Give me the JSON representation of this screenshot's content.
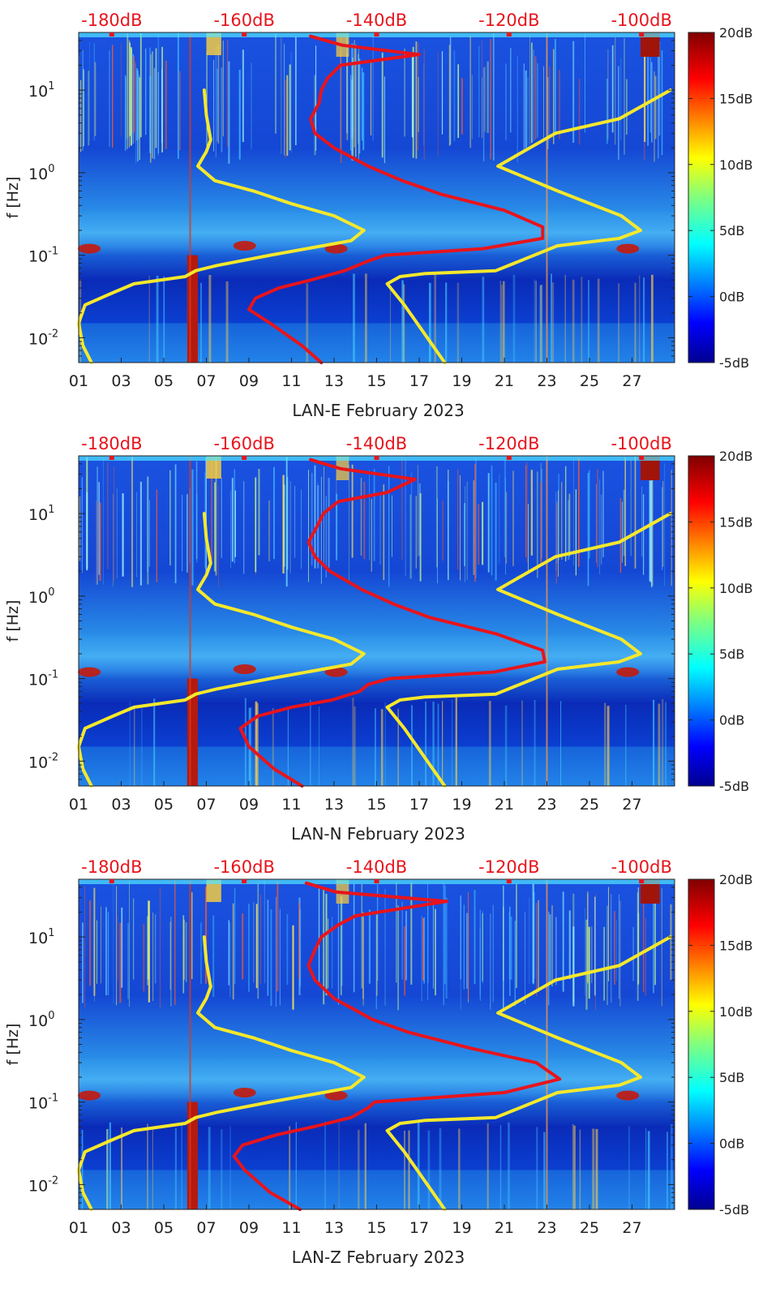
{
  "chart_data": [
    {
      "type": "heatmap",
      "title": "",
      "xlabel": "LAN-E February 2023",
      "ylabel": "f [Hz]",
      "x_ticks": [
        "01",
        "03",
        "05",
        "07",
        "09",
        "11",
        "13",
        "15",
        "17",
        "19",
        "21",
        "23",
        "25",
        "27"
      ],
      "x_range_days": [
        1,
        29
      ],
      "y_ticks": [
        {
          "exp": "1"
        },
        {
          "exp": "0"
        },
        {
          "exp": "-1"
        },
        {
          "exp": "-2"
        }
      ],
      "y_range_hz": [
        0.005,
        50
      ],
      "top_axis_ticks": [
        "-180dB",
        "-160dB",
        "-140dB",
        "-120dB",
        "-100dB"
      ],
      "top_axis_range_db": [
        -185,
        -95
      ],
      "colorbar": {
        "ticks": [
          "20dB",
          "15dB",
          "10dB",
          "5dB",
          "0dB",
          "-5dB"
        ],
        "range_db": [
          -5,
          20
        ]
      },
      "series": [
        {
          "name": "red",
          "color": "#e8141c",
          "points": [
            [
              12.4,
              0.005
            ],
            [
              11.5,
              0.008
            ],
            [
              10.0,
              0.015
            ],
            [
              9.0,
              0.022
            ],
            [
              9.3,
              0.03
            ],
            [
              10.4,
              0.04
            ],
            [
              11.9,
              0.05
            ],
            [
              13.5,
              0.065
            ],
            [
              14.6,
              0.085
            ],
            [
              15.4,
              0.1
            ],
            [
              20.0,
              0.12
            ],
            [
              22.8,
              0.16
            ],
            [
              22.8,
              0.22
            ],
            [
              21.0,
              0.35
            ],
            [
              18.0,
              0.55
            ],
            [
              16.2,
              0.8
            ],
            [
              14.6,
              1.2
            ],
            [
              13.0,
              2.0
            ],
            [
              12.1,
              3.0
            ],
            [
              11.9,
              4.5
            ],
            [
              12.3,
              7.0
            ],
            [
              12.4,
              10.0
            ],
            [
              12.7,
              14.0
            ],
            [
              13.3,
              20.0
            ],
            [
              17.0,
              27.0
            ],
            [
              13.4,
              35.0
            ],
            [
              11.9,
              45.0
            ]
          ]
        },
        {
          "name": "yellow-left",
          "color": "#f5e82c",
          "points": [
            [
              1.6,
              0.005
            ],
            [
              1.2,
              0.008
            ],
            [
              1.0,
              0.015
            ],
            [
              1.3,
              0.025
            ],
            [
              2.6,
              0.035
            ],
            [
              3.6,
              0.045
            ],
            [
              6.0,
              0.055
            ],
            [
              6.5,
              0.065
            ],
            [
              7.5,
              0.075
            ],
            [
              10.0,
              0.1
            ],
            [
              13.8,
              0.15
            ],
            [
              14.4,
              0.2
            ],
            [
              13.0,
              0.3
            ],
            [
              11.0,
              0.42
            ],
            [
              9.2,
              0.6
            ],
            [
              7.4,
              0.8
            ],
            [
              6.6,
              1.2
            ],
            [
              7.0,
              1.8
            ],
            [
              7.2,
              2.5
            ],
            [
              7.0,
              5.0
            ],
            [
              6.9,
              10.0
            ]
          ]
        },
        {
          "name": "yellow-right",
          "color": "#f5e82c",
          "points": [
            [
              18.2,
              0.005
            ],
            [
              16.3,
              0.025
            ],
            [
              15.5,
              0.045
            ],
            [
              16.1,
              0.055
            ],
            [
              17.3,
              0.06
            ],
            [
              20.6,
              0.065
            ],
            [
              23.5,
              0.13
            ],
            [
              26.4,
              0.16
            ],
            [
              27.4,
              0.2
            ],
            [
              26.5,
              0.3
            ],
            [
              23.5,
              0.6
            ],
            [
              20.7,
              1.2
            ],
            [
              23.4,
              3.0
            ],
            [
              26.4,
              4.5
            ],
            [
              28.8,
              10.0
            ]
          ]
        }
      ]
    },
    {
      "type": "heatmap",
      "title": "",
      "xlabel": "LAN-N February 2023",
      "ylabel": "f [Hz]",
      "x_ticks": [
        "01",
        "03",
        "05",
        "07",
        "09",
        "11",
        "13",
        "15",
        "17",
        "19",
        "21",
        "23",
        "25",
        "27"
      ],
      "x_range_days": [
        1,
        29
      ],
      "y_ticks": [
        {
          "exp": "1"
        },
        {
          "exp": "0"
        },
        {
          "exp": "-1"
        },
        {
          "exp": "-2"
        }
      ],
      "y_range_hz": [
        0.005,
        50
      ],
      "top_axis_ticks": [
        "-180dB",
        "-160dB",
        "-140dB",
        "-120dB",
        "-100dB"
      ],
      "top_axis_range_db": [
        -185,
        -95
      ],
      "colorbar": {
        "ticks": [
          "20dB",
          "15dB",
          "10dB",
          "5dB",
          "0dB",
          "-5dB"
        ],
        "range_db": [
          -5,
          20
        ]
      },
      "series": [
        {
          "name": "red",
          "color": "#e8141c",
          "points": [
            [
              11.5,
              0.005
            ],
            [
              10.2,
              0.008
            ],
            [
              9.0,
              0.015
            ],
            [
              8.6,
              0.025
            ],
            [
              9.4,
              0.035
            ],
            [
              11.0,
              0.045
            ],
            [
              12.9,
              0.055
            ],
            [
              14.2,
              0.07
            ],
            [
              14.6,
              0.085
            ],
            [
              15.6,
              0.1
            ],
            [
              20.5,
              0.12
            ],
            [
              22.9,
              0.16
            ],
            [
              22.8,
              0.22
            ],
            [
              20.6,
              0.35
            ],
            [
              17.5,
              0.55
            ],
            [
              15.8,
              0.8
            ],
            [
              14.3,
              1.2
            ],
            [
              12.8,
              2.0
            ],
            [
              12.1,
              3.0
            ],
            [
              11.8,
              4.5
            ],
            [
              12.2,
              7.0
            ],
            [
              12.5,
              10.0
            ],
            [
              13.2,
              14.0
            ],
            [
              15.5,
              18.0
            ],
            [
              16.8,
              26.0
            ],
            [
              13.3,
              35.0
            ],
            [
              11.9,
              45.0
            ]
          ]
        },
        {
          "name": "yellow-left",
          "color": "#f5e82c",
          "points": [
            [
              1.6,
              0.005
            ],
            [
              1.2,
              0.008
            ],
            [
              1.0,
              0.015
            ],
            [
              1.3,
              0.025
            ],
            [
              2.6,
              0.035
            ],
            [
              3.6,
              0.045
            ],
            [
              6.0,
              0.055
            ],
            [
              6.5,
              0.065
            ],
            [
              7.5,
              0.075
            ],
            [
              10.0,
              0.1
            ],
            [
              13.8,
              0.15
            ],
            [
              14.4,
              0.2
            ],
            [
              13.0,
              0.3
            ],
            [
              11.0,
              0.42
            ],
            [
              9.2,
              0.6
            ],
            [
              7.4,
              0.8
            ],
            [
              6.6,
              1.2
            ],
            [
              7.0,
              1.8
            ],
            [
              7.2,
              2.5
            ],
            [
              7.0,
              5.0
            ],
            [
              6.9,
              10.0
            ]
          ]
        },
        {
          "name": "yellow-right",
          "color": "#f5e82c",
          "points": [
            [
              18.2,
              0.005
            ],
            [
              16.3,
              0.025
            ],
            [
              15.5,
              0.045
            ],
            [
              16.1,
              0.055
            ],
            [
              17.3,
              0.06
            ],
            [
              20.6,
              0.065
            ],
            [
              23.5,
              0.13
            ],
            [
              26.4,
              0.16
            ],
            [
              27.4,
              0.2
            ],
            [
              26.5,
              0.3
            ],
            [
              23.5,
              0.6
            ],
            [
              20.7,
              1.2
            ],
            [
              23.4,
              3.0
            ],
            [
              26.4,
              4.5
            ],
            [
              28.8,
              10.0
            ]
          ]
        }
      ]
    },
    {
      "type": "heatmap",
      "title": "",
      "xlabel": "LAN-Z February 2023",
      "ylabel": "f [Hz]",
      "x_ticks": [
        "01",
        "03",
        "05",
        "07",
        "09",
        "11",
        "13",
        "15",
        "17",
        "19",
        "21",
        "23",
        "25",
        "27"
      ],
      "x_range_days": [
        1,
        29
      ],
      "y_ticks": [
        {
          "exp": "1"
        },
        {
          "exp": "0"
        },
        {
          "exp": "-1"
        },
        {
          "exp": "-2"
        }
      ],
      "y_range_hz": [
        0.005,
        50
      ],
      "top_axis_ticks": [
        "-180dB",
        "-160dB",
        "-140dB",
        "-120dB",
        "-100dB"
      ],
      "top_axis_range_db": [
        -185,
        -95
      ],
      "colorbar": {
        "ticks": [
          "20dB",
          "15dB",
          "10dB",
          "5dB",
          "0dB",
          "-5dB"
        ],
        "range_db": [
          -5,
          20
        ]
      },
      "series": [
        {
          "name": "red",
          "color": "#e8141c",
          "points": [
            [
              11.4,
              0.005
            ],
            [
              10.0,
              0.008
            ],
            [
              8.8,
              0.015
            ],
            [
              8.3,
              0.022
            ],
            [
              8.7,
              0.03
            ],
            [
              10.3,
              0.04
            ],
            [
              12.0,
              0.05
            ],
            [
              13.8,
              0.065
            ],
            [
              14.6,
              0.085
            ],
            [
              14.9,
              0.1
            ],
            [
              21.0,
              0.13
            ],
            [
              23.6,
              0.19
            ],
            [
              22.5,
              0.3
            ],
            [
              19.4,
              0.45
            ],
            [
              16.5,
              0.7
            ],
            [
              14.8,
              1.0
            ],
            [
              13.0,
              1.8
            ],
            [
              12.1,
              3.0
            ],
            [
              11.8,
              4.5
            ],
            [
              12.1,
              7.0
            ],
            [
              12.4,
              10.0
            ],
            [
              13.2,
              14.0
            ],
            [
              14.0,
              18.0
            ],
            [
              18.3,
              27.0
            ],
            [
              13.1,
              35.0
            ],
            [
              11.7,
              45.0
            ]
          ]
        },
        {
          "name": "yellow-left",
          "color": "#f5e82c",
          "points": [
            [
              1.6,
              0.005
            ],
            [
              1.2,
              0.008
            ],
            [
              1.0,
              0.015
            ],
            [
              1.3,
              0.025
            ],
            [
              2.6,
              0.035
            ],
            [
              3.6,
              0.045
            ],
            [
              6.0,
              0.055
            ],
            [
              6.5,
              0.065
            ],
            [
              7.5,
              0.075
            ],
            [
              10.0,
              0.1
            ],
            [
              13.8,
              0.15
            ],
            [
              14.4,
              0.2
            ],
            [
              13.0,
              0.3
            ],
            [
              11.0,
              0.42
            ],
            [
              9.2,
              0.6
            ],
            [
              7.4,
              0.8
            ],
            [
              6.6,
              1.2
            ],
            [
              7.0,
              1.8
            ],
            [
              7.2,
              2.5
            ],
            [
              7.0,
              5.0
            ],
            [
              6.9,
              10.0
            ]
          ]
        },
        {
          "name": "yellow-right",
          "color": "#f5e82c",
          "points": [
            [
              18.2,
              0.005
            ],
            [
              16.3,
              0.025
            ],
            [
              15.5,
              0.045
            ],
            [
              16.1,
              0.055
            ],
            [
              17.3,
              0.06
            ],
            [
              20.6,
              0.065
            ],
            [
              23.5,
              0.13
            ],
            [
              26.4,
              0.16
            ],
            [
              27.4,
              0.2
            ],
            [
              26.5,
              0.3
            ],
            [
              23.5,
              0.6
            ],
            [
              20.7,
              1.2
            ],
            [
              23.4,
              3.0
            ],
            [
              26.4,
              4.5
            ],
            [
              28.8,
              10.0
            ]
          ]
        }
      ]
    }
  ]
}
